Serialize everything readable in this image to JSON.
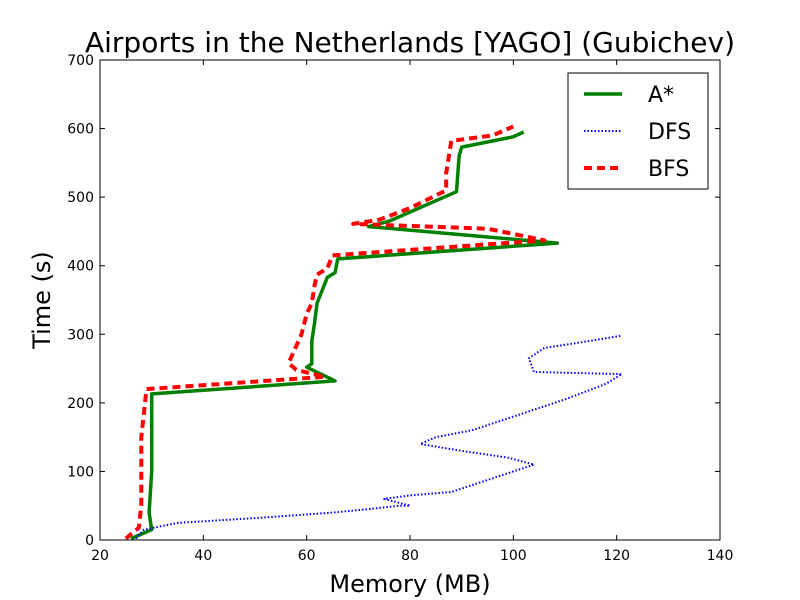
{
  "chart_data": {
    "type": "line",
    "title": "Airports in the Netherlands [YAGO] (Gubichev)",
    "xlabel": "Memory (MB)",
    "ylabel": "Time (s)",
    "xlim": [
      20,
      140
    ],
    "ylim": [
      0,
      700
    ],
    "xticks": [
      20,
      40,
      60,
      80,
      100,
      120,
      140
    ],
    "yticks": [
      0,
      100,
      200,
      300,
      400,
      500,
      600,
      700
    ],
    "legend_position": "top-right",
    "series": [
      {
        "name": "A*",
        "color": "#008000",
        "style": "solid",
        "x": [
          26,
          30,
          29.5,
          30,
          30,
          65.5,
          60,
          61,
          61,
          61.5,
          62,
          64,
          65.5,
          66,
          108.5,
          72,
          76,
          89,
          89.5,
          90,
          100,
          102
        ],
        "y": [
          2,
          15,
          40,
          100,
          213,
          232,
          252,
          257,
          290,
          315,
          345,
          383,
          390,
          410,
          433,
          457,
          465,
          508,
          560,
          573,
          588,
          595
        ]
      },
      {
        "name": "DFS",
        "color": "#0000ff",
        "style": "dotted",
        "x": [
          27,
          28.5,
          35,
          50,
          65,
          72,
          78,
          80,
          75,
          80,
          88,
          94,
          104,
          99,
          90,
          82,
          85,
          92,
          100,
          110,
          118,
          121,
          104,
          103.5,
          103,
          106,
          112,
          121
        ],
        "y": [
          2,
          15,
          25,
          32,
          40,
          45,
          50,
          50,
          60,
          65,
          70,
          85,
          110,
          120,
          130,
          140,
          150,
          160,
          180,
          205,
          228,
          242,
          245,
          255,
          265,
          280,
          287,
          298
        ]
      },
      {
        "name": "BFS",
        "color": "#ff0000",
        "style": "dashed",
        "x": [
          25,
          27.5,
          28,
          28,
          28,
          29,
          63.5,
          58,
          56.5,
          59,
          60,
          61,
          61.5,
          62,
          64,
          65,
          106,
          95,
          69,
          74,
          80,
          87,
          87,
          88,
          96,
          100
        ],
        "y": [
          2,
          18,
          50,
          100,
          150,
          220,
          238,
          248,
          258,
          300,
          330,
          345,
          370,
          387,
          396,
          415,
          437,
          454,
          461,
          467,
          484,
          510,
          535,
          582,
          590,
          603
        ]
      }
    ]
  }
}
